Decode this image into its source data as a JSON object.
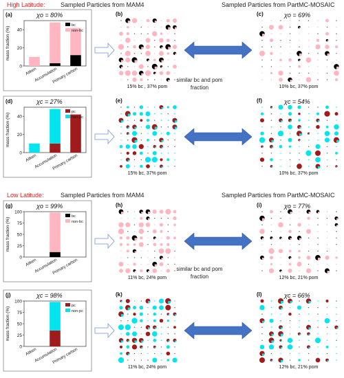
{
  "sections": [
    {
      "title": "High Latitude:",
      "title_color": "#e31a1c",
      "left_header": "Sampled Particles from MAM4",
      "right_header": "Sampled Particles from PartMC-MOSAIC",
      "arrow_label": [
        "similar bc and pom",
        "fraction"
      ]
    },
    {
      "title": "Low Latitude:",
      "title_color": "#e31a1c",
      "left_header": "Sampled Particles from MAM4",
      "right_header": "Sampled Particles from PartMC-MOSAIC",
      "arrow_label": [
        "similar bc and pom",
        "fraction"
      ]
    }
  ],
  "colors": {
    "bc": "#000000",
    "non_bc": "#ffb6c1",
    "pc": "#a01c1c",
    "non_pc": "#00e5ee",
    "arrow": "#4472c4",
    "open_arrow": "#8faadc"
  },
  "chart_data": [
    {
      "panel": "(a)",
      "type": "bar",
      "stacked": true,
      "chi_label": "χo = 80%",
      "ylabel": "mass fraction (%)",
      "ylim": [
        0,
        50
      ],
      "yticks": [
        0,
        20,
        40
      ],
      "categories": [
        "Aitken",
        "Accumulation",
        "Primary carbon"
      ],
      "series": [
        {
          "name": "bc",
          "color": "#000000",
          "values": [
            0,
            3,
            12
          ]
        },
        {
          "name": "non-bc",
          "color": "#ffb6c1",
          "values": [
            10,
            45,
            30
          ]
        }
      ]
    },
    {
      "panel": "(d)",
      "type": "bar",
      "stacked": true,
      "chi_label": "χc = 27%",
      "ylabel": "mass fraction (%)",
      "ylim": [
        0,
        50
      ],
      "yticks": [
        0,
        20,
        40
      ],
      "categories": [
        "Aitken",
        "Accumulation",
        "Primary carbon"
      ],
      "series": [
        {
          "name": "pc",
          "color": "#a01c1c",
          "values": [
            0,
            10,
            42
          ]
        },
        {
          "name": "non-pc",
          "color": "#00e5ee",
          "values": [
            10,
            38,
            0
          ]
        }
      ]
    },
    {
      "panel": "(g)",
      "type": "bar",
      "stacked": true,
      "chi_label": "χo = 99%",
      "ylabel": "mass fraction (%)",
      "ylim": [
        0,
        100
      ],
      "yticks": [
        0,
        25,
        50,
        75,
        100
      ],
      "categories": [
        "Aitken",
        "Accumulation",
        "Primary carbon"
      ],
      "series": [
        {
          "name": "bc",
          "color": "#000000",
          "values": [
            0,
            11,
            0
          ]
        },
        {
          "name": "non-bc",
          "color": "#ffb6c1",
          "values": [
            0,
            87,
            0
          ]
        }
      ]
    },
    {
      "panel": "(j)",
      "type": "bar",
      "stacked": true,
      "chi_label": "χc = 98%",
      "ylabel": "mass fraction (%)",
      "ylim": [
        0,
        100
      ],
      "yticks": [
        0,
        25,
        50,
        75,
        100
      ],
      "categories": [
        "Aitken",
        "Accumulation",
        "Primary carbon"
      ],
      "series": [
        {
          "name": "pc",
          "color": "#a01c1c",
          "values": [
            0,
            35,
            0
          ]
        },
        {
          "name": "non-pc",
          "color": "#00e5ee",
          "values": [
            0,
            63,
            0
          ]
        }
      ]
    }
  ],
  "particle_panels": [
    {
      "panel": "(b)",
      "chi_label": "",
      "caption": "15% bc , 37% pom",
      "scheme": "bc",
      "seed": 11,
      "density": 0.55
    },
    {
      "panel": "(c)",
      "chi_label": "χo = 69%",
      "caption": "10% bc, 37% pom",
      "scheme": "bc",
      "seed": 23,
      "density": 0.35
    },
    {
      "panel": "(e)",
      "chi_label": "",
      "caption": "15% bc, 37% pom",
      "scheme": "pc",
      "seed": 31,
      "density": 0.5
    },
    {
      "panel": "(f)",
      "chi_label": "χc = 54%",
      "caption": "10% bc, 37% pom",
      "scheme": "pc",
      "seed": 47,
      "density": 0.45
    },
    {
      "panel": "(h)",
      "chi_label": "",
      "caption": "11% bc, 24% pom",
      "scheme": "bc",
      "seed": 53,
      "density": 0.45
    },
    {
      "panel": "(i)",
      "chi_label": "χo = 77%",
      "caption": "12% bc, 21% pom",
      "scheme": "bc",
      "seed": 67,
      "density": 0.4
    },
    {
      "panel": "(k)",
      "chi_label": "",
      "caption": "11% bc, 24% pom",
      "scheme": "pc",
      "seed": 71,
      "density": 0.55
    },
    {
      "panel": "(l)",
      "chi_label": "χc = 66%",
      "caption": "12% bc, 21% pom",
      "scheme": "pc",
      "seed": 89,
      "density": 0.5
    }
  ]
}
